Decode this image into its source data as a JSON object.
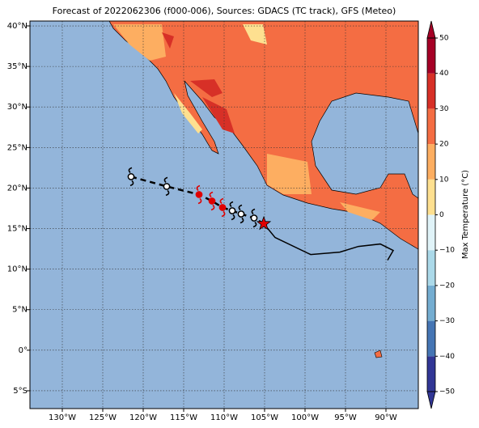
{
  "chart_data": {
    "type": "map",
    "title": "Forecast of 2022062306 (f000-006), Sources: GDACS (TC track), GFS (Meteo)",
    "xlim": [
      -134,
      -86
    ],
    "ylim": [
      -7.2,
      40.6
    ],
    "xticks": [
      {
        "value": -130,
        "label": "130°W"
      },
      {
        "value": -125,
        "label": "125°W"
      },
      {
        "value": -120,
        "label": "120°W"
      },
      {
        "value": -115,
        "label": "115°W"
      },
      {
        "value": -110,
        "label": "110°W"
      },
      {
        "value": -105,
        "label": "105°W"
      },
      {
        "value": -100,
        "label": "100°W"
      },
      {
        "value": -95,
        "label": "95°W"
      },
      {
        "value": -90,
        "label": "90°W"
      }
    ],
    "yticks": [
      {
        "value": 40,
        "label": "40°N"
      },
      {
        "value": 35,
        "label": "35°N"
      },
      {
        "value": 30,
        "label": "30°N"
      },
      {
        "value": 25,
        "label": "25°N"
      },
      {
        "value": 20,
        "label": "20°N"
      },
      {
        "value": 15,
        "label": "15°N"
      },
      {
        "value": 10,
        "label": "10°N"
      },
      {
        "value": 5,
        "label": "5°N"
      },
      {
        "value": 0,
        "label": "0°"
      },
      {
        "value": -5,
        "label": "5°S"
      }
    ],
    "grid": true,
    "ocean_color": "#93b5da",
    "track": {
      "lon": [
        -121.5,
        -117.1,
        -113.1,
        -111.5,
        -110.2,
        -109.0,
        -107.9,
        -106.3
      ],
      "lat": [
        21.4,
        20.2,
        19.2,
        18.4,
        17.6,
        17.2,
        16.8,
        16.3
      ],
      "colors": [
        "#000000",
        "#000000",
        "#e00000",
        "#e00000",
        "#e00000",
        "#000000",
        "#000000",
        "#000000"
      ]
    },
    "current_position": {
      "lon": -105.1,
      "lat": 15.6,
      "color": "#e00000"
    },
    "past_track": {
      "lon": [
        -105.1,
        -103.7,
        -99.3,
        -95.7,
        -93.4,
        -90.7,
        -89.1,
        -89.8
      ],
      "lat": [
        15.6,
        13.9,
        11.8,
        12.1,
        12.8,
        13.1,
        12.3,
        11.1
      ]
    },
    "colorbar": {
      "label": "Max Temperature (°C)",
      "lim": [
        -50,
        50
      ],
      "ticks": [
        {
          "value": -50,
          "label": "−50"
        },
        {
          "value": -40,
          "label": "−40"
        },
        {
          "value": -30,
          "label": "−30"
        },
        {
          "value": -20,
          "label": "−20"
        },
        {
          "value": -10,
          "label": "−10"
        },
        0,
        10,
        20,
        30,
        40,
        50
      ],
      "colors": [
        "#313695",
        "#4575b4",
        "#74add1",
        "#abd9e9",
        "#e0f3f8",
        "#fee090",
        "#fdae61",
        "#f46d43",
        "#d73027",
        "#a50026"
      ]
    }
  }
}
